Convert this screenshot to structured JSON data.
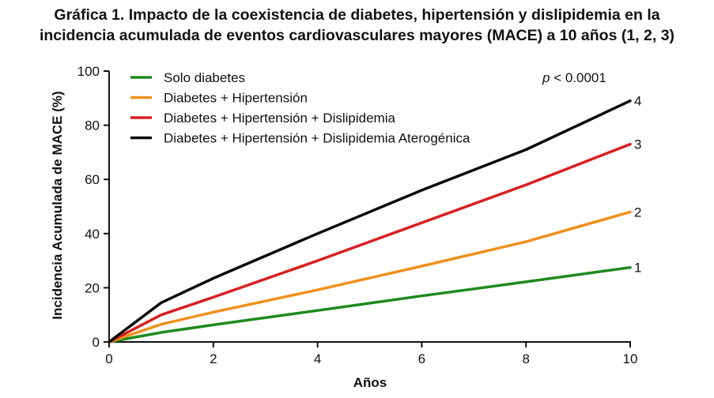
{
  "title_line1": "Gráfica 1. Impacto de la coexistencia de diabetes, hipertensión y dislipidemia en la",
  "title_line2": "incidencia acumulada de eventos cardiovasculares mayores (MACE) a 10 años (1, 2, 3)",
  "chart_data": {
    "type": "line",
    "xlabel": "Años",
    "ylabel": "Incidencia Acumulada de MACE (%)",
    "xlim": [
      0,
      10
    ],
    "ylim": [
      0,
      100
    ],
    "xticks": [
      "0",
      "2",
      "4",
      "6",
      "8",
      "10"
    ],
    "yticks": [
      "0",
      "20",
      "40",
      "60",
      "80",
      "100"
    ],
    "grid": false,
    "legend_position": "top-left",
    "annotation": {
      "italic": "p",
      "text": " < 0.0001"
    },
    "series": [
      {
        "name": "Solo diabetes",
        "end_label": "1",
        "color": "#1e8a1e",
        "points": [
          [
            0,
            0
          ],
          [
            1,
            3.5
          ],
          [
            2,
            6.3
          ],
          [
            4,
            11.6
          ],
          [
            6,
            17
          ],
          [
            8,
            22.2
          ],
          [
            10,
            27.5
          ]
        ]
      },
      {
        "name": "Diabetes + Hipertensión",
        "end_label": "2",
        "color": "#f0901c",
        "points": [
          [
            0,
            0
          ],
          [
            1,
            6.5
          ],
          [
            2,
            11
          ],
          [
            4,
            19.2
          ],
          [
            6,
            28
          ],
          [
            8,
            37
          ],
          [
            10,
            48
          ]
        ]
      },
      {
        "name": "Diabetes + Hipertensión + Dislipidemia",
        "end_label": "3",
        "color": "#d91f1f",
        "points": [
          [
            0,
            0
          ],
          [
            1,
            10
          ],
          [
            2,
            16.5
          ],
          [
            4,
            30
          ],
          [
            6,
            44
          ],
          [
            8,
            58
          ],
          [
            10,
            73
          ]
        ]
      },
      {
        "name": "Diabetes + Hipertensión + Dislipidemia Aterogénica",
        "end_label": "4",
        "color": "#0a0a0a",
        "points": [
          [
            0,
            0
          ],
          [
            1,
            14.5
          ],
          [
            2,
            23.5
          ],
          [
            4,
            40
          ],
          [
            6,
            56
          ],
          [
            8,
            71
          ],
          [
            10,
            89
          ]
        ]
      }
    ]
  }
}
